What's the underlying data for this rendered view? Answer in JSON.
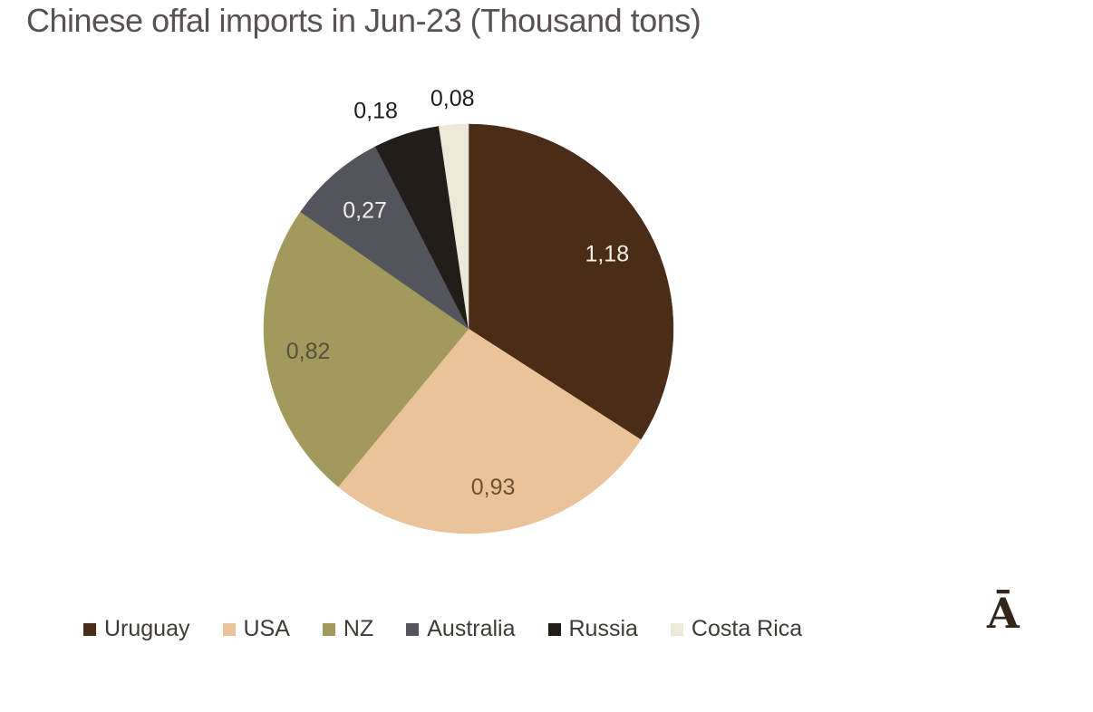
{
  "watermark": "Ā",
  "chart_data": {
    "type": "pie",
    "title": "Chinese offal imports in Jun-23 (Thousand tons)",
    "unit": "Thousand tons",
    "start_angle_deg": 0,
    "direction": "clockwise",
    "legend_position": "bottom",
    "decimal_separator": ",",
    "slices": [
      {
        "label": "Uruguay",
        "value": 1.18,
        "display": "1,18",
        "color": "#4a2d17",
        "label_placement": "inside",
        "label_color": "#f2eee3",
        "label_r": 0.77
      },
      {
        "label": "USA",
        "value": 0.93,
        "display": "0,93",
        "color": "#eac39b",
        "label_placement": "inside",
        "label_color": "#70512f",
        "label_r": 0.78
      },
      {
        "label": "NZ",
        "value": 0.82,
        "display": "0,82",
        "color": "#a19a5c",
        "label_placement": "inside",
        "label_color": "#57513b",
        "label_r": 0.79
      },
      {
        "label": "Australia",
        "value": 0.27,
        "display": "0,27",
        "color": "#54555c",
        "label_placement": "inside",
        "label_color": "#f0efe9",
        "label_r": 0.77
      },
      {
        "label": "Russia",
        "value": 0.18,
        "display": "0,18",
        "color": "#221d18",
        "label_placement": "outside",
        "label_color": "#1f1d1b",
        "label_r": 1.16,
        "label_angle_deg": 337
      },
      {
        "label": "Costa Rica",
        "value": 0.08,
        "display": "0,08",
        "color": "#ede9d9",
        "label_placement": "outside",
        "label_color": "#1f1d1b",
        "label_r": 1.13,
        "label_angle_deg": 356
      }
    ]
  }
}
